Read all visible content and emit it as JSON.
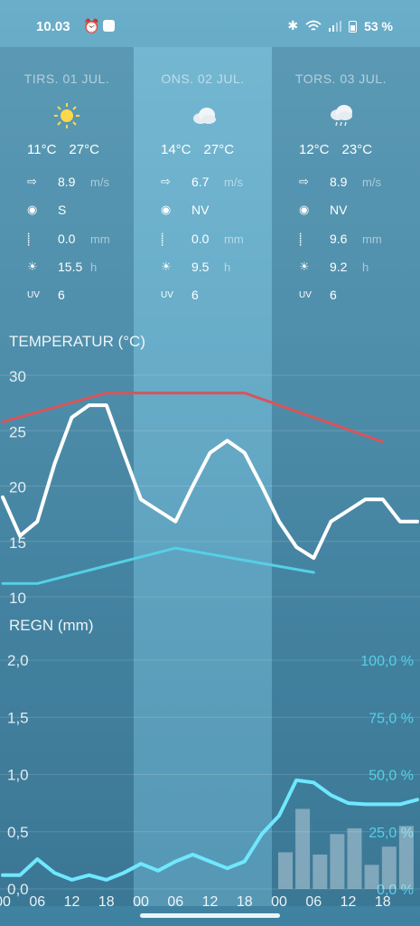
{
  "status_bar": {
    "time": "10.03",
    "battery": "53 %",
    "icons": [
      "alarm-icon",
      "notification-icon",
      "bluetooth-icon",
      "wifi-icon",
      "signal-icon",
      "battery-icon"
    ]
  },
  "days": [
    {
      "title": "TIRS. 01 JUL.",
      "icon": "sun-icon",
      "min": "11°C",
      "max": "27°C",
      "wind": "8.9",
      "wind_unit": "m/s",
      "wind_dir": "S",
      "rain": "0.0",
      "rain_unit": "mm",
      "sun": "15.5",
      "sun_unit": "h",
      "uv_label": "UV",
      "uv": "6"
    },
    {
      "title": "ONS. 02 JUL.",
      "icon": "cloud-icon",
      "min": "14°C",
      "max": "27°C",
      "wind": "6.7",
      "wind_unit": "m/s",
      "wind_dir": "NV",
      "rain": "0.0",
      "rain_unit": "mm",
      "sun": "9.5",
      "sun_unit": "h",
      "uv_label": "UV",
      "uv": "6"
    },
    {
      "title": "TORS. 03 JUL.",
      "icon": "rain-cloud-icon",
      "min": "12°C",
      "max": "23°C",
      "wind": "8.9",
      "wind_unit": "m/s",
      "wind_dir": "NV",
      "rain": "9.6",
      "rain_unit": "mm",
      "sun": "9.2",
      "sun_unit": "h",
      "uv_label": "UV",
      "uv": "6"
    }
  ],
  "temperature_title": "TEMPERATUR (°C)",
  "rain_title": "REGN (mm)",
  "colors": {
    "max_line": "#d9545a",
    "min_line": "#55d0e6",
    "temp_line": "#ffffff",
    "rain_line": "#6fe8ff",
    "bars": "rgba(255,255,255,0.35)"
  },
  "chart_data": [
    {
      "type": "line",
      "title": "TEMPERATUR (°C)",
      "ylim": [
        8,
        32
      ],
      "yticks": [
        "30",
        "25",
        "20",
        "15",
        "10"
      ],
      "x_hours": [
        0,
        3,
        6,
        9,
        12,
        15,
        18,
        21,
        24,
        27,
        30,
        33,
        36,
        39,
        42,
        45,
        48,
        51,
        54,
        57,
        60,
        63,
        66,
        69,
        72
      ],
      "series": [
        {
          "values": [
            19,
            15.5,
            16.8,
            22,
            26.2,
            27.3,
            27.3,
            23,
            18.8,
            17.8,
            16.8,
            20,
            23,
            24.1,
            23,
            20,
            16.8,
            14.5,
            13.5,
            16.8,
            17.8,
            18.8,
            18.8,
            16.8,
            16.8
          ]
        }
      ],
      "max_line": {
        "x_hours": [
          0,
          18,
          42,
          66
        ],
        "values": [
          25.8,
          28.4,
          28.4,
          24
        ]
      },
      "min_line": {
        "x_hours": [
          0,
          6,
          30,
          54
        ],
        "values": [
          11.2,
          11.2,
          14.4,
          12.2
        ]
      }
    },
    {
      "type": "bar",
      "title": "REGN (mm)",
      "ylim": [
        0,
        2.0
      ],
      "yticks": [
        "2,0",
        "1,5",
        "1,0",
        "0,5",
        "0,0"
      ],
      "y2ticks": [
        "100,0 %",
        "75,0 %",
        "50,0 %",
        "25,0 %",
        "0,0 %"
      ],
      "x_labels": [
        "00",
        "06",
        "12",
        "18",
        "00",
        "06",
        "12",
        "18",
        "00",
        "06",
        "12",
        "18"
      ],
      "precip_prob_line": {
        "x_hours": [
          0,
          3,
          6,
          9,
          12,
          15,
          18,
          21,
          24,
          27,
          30,
          33,
          36,
          39,
          42,
          45,
          48,
          51,
          54,
          57,
          60,
          63,
          66,
          69,
          72
        ],
        "values": [
          0.12,
          0.12,
          0.26,
          0.14,
          0.08,
          0.12,
          0.08,
          0.14,
          0.22,
          0.16,
          0.24,
          0.3,
          0.24,
          0.18,
          0.24,
          0.48,
          0.64,
          0.95,
          0.93,
          0.82,
          0.75,
          0.74,
          0.74,
          0.74,
          0.78
        ]
      },
      "bars": {
        "x_hours": [
          48,
          51,
          54,
          57,
          60,
          63,
          66,
          69
        ],
        "values": [
          0.32,
          0.7,
          0.3,
          0.48,
          0.53,
          0.21,
          0.37,
          0.55
        ]
      }
    }
  ]
}
